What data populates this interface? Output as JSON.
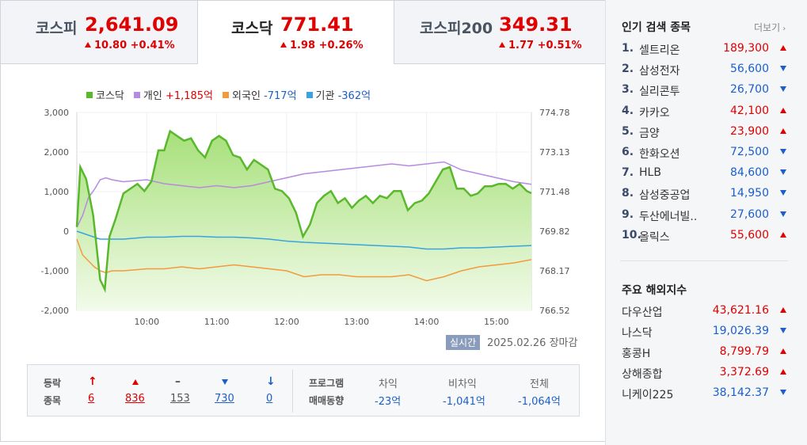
{
  "tabs": [
    {
      "name": "코스피",
      "value": "2,641.09",
      "change": "10.80 +0.41%"
    },
    {
      "name": "코스닥",
      "value": "771.41",
      "change": "1.98 +0.26%"
    },
    {
      "name": "코스피200",
      "value": "349.31",
      "change": "1.77 +0.51%"
    }
  ],
  "legend": {
    "kosdaq": "코스닥",
    "individual": "개인",
    "individual_val": "+1,185억",
    "foreign": "외국인",
    "foreign_val": "-717억",
    "institution": "기관",
    "institution_val": "-362억"
  },
  "colors": {
    "kosdaq": "#59b82b",
    "individual": "#b58ae0",
    "foreign": "#f39a3c",
    "institution": "#3aa3e0",
    "up": "#e00000",
    "down": "#1a5fcc"
  },
  "chart_data": {
    "type": "line",
    "x_ticks": [
      "10:00",
      "11:00",
      "12:00",
      "13:00",
      "14:00",
      "15:00"
    ],
    "y_left_ticks": [
      "3,000",
      "2,000",
      "1,000",
      "0",
      "-1,000",
      "-2,000"
    ],
    "y_right_ticks": [
      "774.78",
      "773.13",
      "771.48",
      "769.82",
      "768.17",
      "766.52"
    ],
    "ylim_left": [
      -2000,
      3000
    ],
    "ylim_right": [
      766.52,
      774.78
    ],
    "time_range": [
      "09:00",
      "15:30"
    ],
    "series": [
      {
        "name": "코스닥",
        "axis": "right",
        "x": [
          "09:00",
          "09:03",
          "09:08",
          "09:14",
          "09:20",
          "09:24",
          "09:28",
          "09:33",
          "09:40",
          "09:46",
          "09:52",
          "09:58",
          "10:04",
          "10:10",
          "10:15",
          "10:20",
          "10:26",
          "10:32",
          "10:38",
          "10:44",
          "10:50",
          "10:56",
          "11:02",
          "11:08",
          "11:14",
          "11:20",
          "11:26",
          "11:32",
          "11:38",
          "11:44",
          "11:50",
          "11:56",
          "12:02",
          "12:08",
          "12:14",
          "12:20",
          "12:26",
          "12:32",
          "12:38",
          "12:44",
          "12:50",
          "12:56",
          "13:02",
          "13:08",
          "13:14",
          "13:20",
          "13:26",
          "13:32",
          "13:38",
          "13:44",
          "13:50",
          "13:56",
          "14:02",
          "14:08",
          "14:14",
          "14:20",
          "14:26",
          "14:32",
          "14:38",
          "14:44",
          "14:50",
          "14:56",
          "15:02",
          "15:08",
          "15:14",
          "15:20",
          "15:26",
          "15:30"
        ],
        "y": [
          770.0,
          772.5,
          772.0,
          770.5,
          767.8,
          767.4,
          769.6,
          770.3,
          771.4,
          771.6,
          771.8,
          771.5,
          771.9,
          773.2,
          773.2,
          774.0,
          773.8,
          773.6,
          773.7,
          773.2,
          772.9,
          773.6,
          773.8,
          773.6,
          773.0,
          772.9,
          772.4,
          772.8,
          772.6,
          772.4,
          771.6,
          771.5,
          771.2,
          770.6,
          769.6,
          770.1,
          771.0,
          771.3,
          771.5,
          771.0,
          771.2,
          770.8,
          771.1,
          771.3,
          771.0,
          771.3,
          771.2,
          771.5,
          771.5,
          770.7,
          771.0,
          771.1,
          771.4,
          771.9,
          772.4,
          772.5,
          771.6,
          771.6,
          771.3,
          771.4,
          771.7,
          771.7,
          771.8,
          771.8,
          771.6,
          771.8,
          771.5,
          771.41
        ]
      },
      {
        "name": "개인",
        "axis": "left",
        "x": [
          "09:00",
          "09:05",
          "09:10",
          "09:15",
          "09:20",
          "09:25",
          "09:30",
          "09:40",
          "10:00",
          "10:15",
          "10:30",
          "10:45",
          "11:00",
          "11:15",
          "11:30",
          "11:45",
          "12:00",
          "12:15",
          "12:30",
          "12:45",
          "13:00",
          "13:15",
          "13:30",
          "13:45",
          "14:00",
          "14:15",
          "14:30",
          "14:45",
          "15:00",
          "15:15",
          "15:30"
        ],
        "y": [
          100,
          400,
          850,
          1050,
          1300,
          1350,
          1300,
          1250,
          1300,
          1200,
          1150,
          1100,
          1150,
          1100,
          1150,
          1250,
          1350,
          1450,
          1500,
          1550,
          1600,
          1650,
          1700,
          1650,
          1700,
          1750,
          1550,
          1450,
          1350,
          1250,
          1185
        ]
      },
      {
        "name": "외국인",
        "axis": "left",
        "x": [
          "09:00",
          "09:05",
          "09:10",
          "09:15",
          "09:20",
          "09:25",
          "09:30",
          "09:40",
          "10:00",
          "10:15",
          "10:30",
          "10:45",
          "11:00",
          "11:15",
          "11:30",
          "11:45",
          "12:00",
          "12:15",
          "12:30",
          "12:45",
          "13:00",
          "13:15",
          "13:30",
          "13:45",
          "14:00",
          "14:15",
          "14:30",
          "14:45",
          "15:00",
          "15:15",
          "15:30"
        ],
        "y": [
          -200,
          -600,
          -750,
          -900,
          -1000,
          -1050,
          -1000,
          -1000,
          -950,
          -950,
          -900,
          -950,
          -900,
          -850,
          -900,
          -950,
          -1000,
          -1150,
          -1100,
          -1100,
          -1150,
          -1150,
          -1150,
          -1100,
          -1250,
          -1150,
          -1000,
          -900,
          -850,
          -800,
          -717
        ]
      },
      {
        "name": "기관",
        "axis": "left",
        "x": [
          "09:00",
          "09:05",
          "09:10",
          "09:15",
          "09:20",
          "09:25",
          "09:30",
          "09:40",
          "10:00",
          "10:15",
          "10:30",
          "10:45",
          "11:00",
          "11:15",
          "11:30",
          "11:45",
          "12:00",
          "12:15",
          "12:30",
          "12:45",
          "13:00",
          "13:15",
          "13:30",
          "13:45",
          "14:00",
          "14:15",
          "14:30",
          "14:45",
          "15:00",
          "15:15",
          "15:30"
        ],
        "y": [
          0,
          -50,
          -100,
          -150,
          -200,
          -200,
          -200,
          -200,
          -150,
          -150,
          -130,
          -130,
          -150,
          -150,
          -170,
          -200,
          -250,
          -280,
          -300,
          -320,
          -340,
          -360,
          -380,
          -400,
          -450,
          -450,
          -420,
          -420,
          -400,
          -380,
          -362
        ]
      }
    ]
  },
  "status": {
    "live": "실시간",
    "date": "2025.02.26",
    "close": "장마감"
  },
  "breadth": {
    "label1": "등락",
    "label2": "종목",
    "upper_limit": "6",
    "up": "836",
    "flat": "153",
    "down": "730",
    "lower_limit": "0"
  },
  "program": {
    "label1": "프로그램",
    "label2": "매매동향",
    "h1": "차익",
    "v1": "-23억",
    "h2": "비차익",
    "v2": "-1,041억",
    "h3": "전체",
    "v3": "-1,064억"
  },
  "popular": {
    "title": "인기 검색 종목",
    "more": "더보기",
    "items": [
      {
        "rank": "1.",
        "name": "셀트리온",
        "price": "189,300",
        "dir": "up"
      },
      {
        "rank": "2.",
        "name": "삼성전자",
        "price": "56,600",
        "dir": "down"
      },
      {
        "rank": "3.",
        "name": "실리콘투",
        "price": "26,700",
        "dir": "down"
      },
      {
        "rank": "4.",
        "name": "카카오",
        "price": "42,100",
        "dir": "up"
      },
      {
        "rank": "5.",
        "name": "금양",
        "price": "23,900",
        "dir": "up"
      },
      {
        "rank": "6.",
        "name": "한화오션",
        "price": "72,500",
        "dir": "down"
      },
      {
        "rank": "7.",
        "name": "HLB",
        "price": "84,600",
        "dir": "down"
      },
      {
        "rank": "8.",
        "name": "삼성중공업",
        "price": "14,950",
        "dir": "down"
      },
      {
        "rank": "9.",
        "name": "두산에너빌..",
        "price": "27,600",
        "dir": "down"
      },
      {
        "rank": "10.",
        "name": "올릭스",
        "price": "55,600",
        "dir": "up"
      }
    ]
  },
  "world": {
    "title": "주요 해외지수",
    "items": [
      {
        "name": "다우산업",
        "price": "43,621.16",
        "dir": "up"
      },
      {
        "name": "나스닥",
        "price": "19,026.39",
        "dir": "down"
      },
      {
        "name": "홍콩H",
        "price": "8,799.79",
        "dir": "up"
      },
      {
        "name": "상해종합",
        "price": "3,372.69",
        "dir": "up"
      },
      {
        "name": "니케이225",
        "price": "38,142.37",
        "dir": "down"
      }
    ]
  }
}
